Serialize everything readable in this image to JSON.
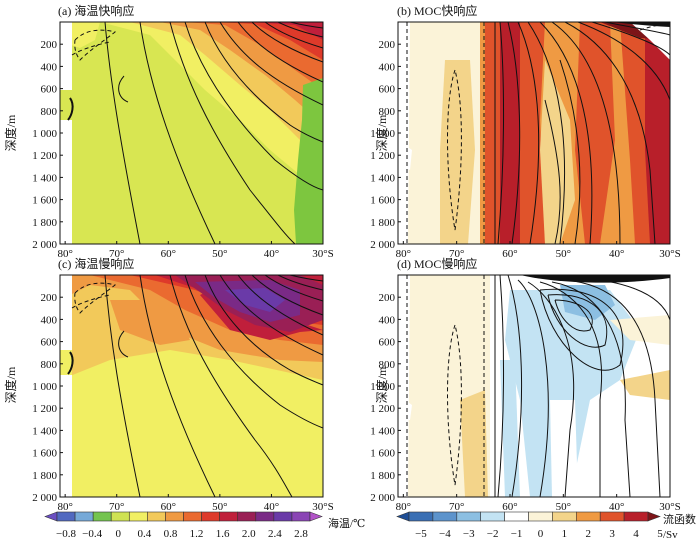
{
  "figure": {
    "colorbar_left": {
      "label": "海温/℃",
      "ticks": [
        "−0.8",
        "−0.4",
        "0",
        "0.4",
        "0.8",
        "1.2",
        "1.6",
        "2.0",
        "2.4",
        "2.8"
      ],
      "colors": [
        "#6b4fc2",
        "#5169c0",
        "#76a9d8",
        "#74c44f",
        "#cfe253",
        "#f1ef63",
        "#f2c95a",
        "#ef9a43",
        "#ea6a30",
        "#de3a2a",
        "#c01f3b",
        "#9a1f55",
        "#7a2a86",
        "#6a3aa8",
        "#8a45b5",
        "#b254c8"
      ]
    },
    "colorbar_right": {
      "label_line1": "流函数",
      "label_line2": "/Sv",
      "ticks": [
        "−5",
        "−4",
        "−3",
        "−2",
        "−1",
        "0",
        "1",
        "2",
        "3",
        "4",
        "5"
      ],
      "colors": [
        "#1f4e96",
        "#3a6fb4",
        "#5c93cc",
        "#8cbfe2",
        "#c3e3f3",
        "#ffffff",
        "#fbf3d8",
        "#f3d48a",
        "#ef9a43",
        "#e0532b",
        "#b81f2a",
        "#7d1418"
      ]
    }
  },
  "chart_data": [
    {
      "type": "heatmap",
      "title": "(a) 海温快响应",
      "ylabel": "深度/m",
      "xticks": [
        "80°",
        "70°",
        "60°",
        "50°",
        "40°",
        "30°S"
      ],
      "yticks": [
        "200",
        "400",
        "600",
        "800",
        "1 000",
        "1 200",
        "1 400",
        "1 600",
        "1 800",
        "2 000"
      ],
      "x_values": [
        -80,
        -70,
        -60,
        -50,
        -40,
        -30
      ],
      "y_values": [
        200,
        400,
        600,
        800,
        1000,
        1200,
        1400,
        1600,
        1800,
        2000
      ],
      "xlim": [
        -81,
        -30
      ],
      "ylim": [
        2000,
        0
      ],
      "colorbar": "海温/℃"
    },
    {
      "type": "heatmap",
      "title": "(b) MOC快响应",
      "ylabel": "深度/m",
      "xticks": [
        "80°",
        "70°",
        "60°",
        "50°",
        "40°",
        "30°S"
      ],
      "yticks": [
        "200",
        "400",
        "600",
        "800",
        "1 000",
        "1 200",
        "1 400",
        "1 600",
        "1 800",
        "2 000"
      ],
      "x_values": [
        -80,
        -70,
        -60,
        -50,
        -40,
        -30
      ],
      "y_values": [
        200,
        400,
        600,
        800,
        1000,
        1200,
        1400,
        1600,
        1800,
        2000
      ],
      "xlim": [
        -81,
        -30
      ],
      "ylim": [
        2000,
        0
      ],
      "colorbar": "流函数/Sv"
    },
    {
      "type": "heatmap",
      "title": "(c) 海温慢响应",
      "ylabel": "深度/m",
      "xticks": [
        "80°",
        "70°",
        "60°",
        "50°",
        "40°",
        "30°S"
      ],
      "yticks": [
        "200",
        "400",
        "600",
        "800",
        "1 000",
        "1 200",
        "1 400",
        "1 600",
        "1 800",
        "2 000"
      ],
      "x_values": [
        -80,
        -70,
        -60,
        -50,
        -40,
        -30
      ],
      "y_values": [
        200,
        400,
        600,
        800,
        1000,
        1200,
        1400,
        1600,
        1800,
        2000
      ],
      "xlim": [
        -81,
        -30
      ],
      "ylim": [
        2000,
        0
      ],
      "colorbar": "海温/℃"
    },
    {
      "type": "heatmap",
      "title": "(d) MOC慢响应",
      "ylabel": "深度/m",
      "xticks": [
        "80°",
        "70°",
        "60°",
        "50°",
        "40°",
        "30°S"
      ],
      "yticks": [
        "200",
        "400",
        "600",
        "800",
        "1 000",
        "1 200",
        "1 400",
        "1 600",
        "1 800",
        "2 000"
      ],
      "x_values": [
        -80,
        -70,
        -60,
        -50,
        -40,
        -30
      ],
      "y_values": [
        200,
        400,
        600,
        800,
        1000,
        1200,
        1400,
        1600,
        1800,
        2000
      ],
      "xlim": [
        -81,
        -30
      ],
      "ylim": [
        2000,
        0
      ],
      "colorbar": "流函数/Sv"
    }
  ]
}
